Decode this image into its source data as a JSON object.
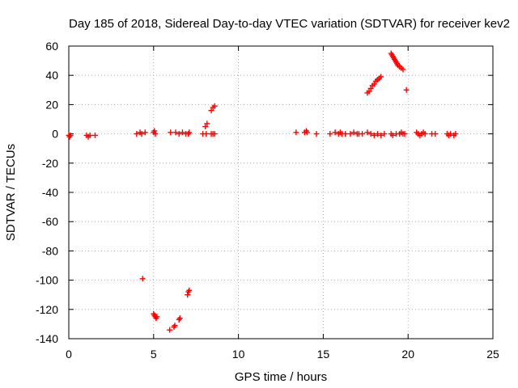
{
  "chart_data": {
    "type": "scatter",
    "title": "Day 185 of 2018, Sidereal Day-to-day VTEC variation (SDTVAR) for receiver kev2",
    "xlabel": "GPS time / hours",
    "ylabel": "SDTVAR / TECUs",
    "xlim": [
      0,
      25
    ],
    "ylim": [
      -140,
      60
    ],
    "xticks": [
      0,
      5,
      10,
      15,
      20,
      25
    ],
    "yticks": [
      -140,
      -120,
      -100,
      -80,
      -60,
      -40,
      -20,
      0,
      20,
      40,
      60
    ],
    "grid": true,
    "marker": "+",
    "series": [
      {
        "name": "SDTVAR",
        "color": "#ff0000",
        "points": [
          [
            0.0,
            -1
          ],
          [
            0.05,
            -2
          ],
          [
            0.1,
            -1
          ],
          [
            1.05,
            -1
          ],
          [
            1.15,
            -2
          ],
          [
            1.25,
            -1
          ],
          [
            1.55,
            -1
          ],
          [
            4.0,
            0
          ],
          [
            4.2,
            1
          ],
          [
            4.3,
            0
          ],
          [
            4.5,
            1
          ],
          [
            4.35,
            -99
          ],
          [
            5.0,
            1
          ],
          [
            5.05,
            2
          ],
          [
            5.1,
            0
          ],
          [
            5.0,
            -123
          ],
          [
            5.05,
            -124
          ],
          [
            5.1,
            -125
          ],
          [
            5.15,
            -126
          ],
          [
            5.2,
            -125
          ],
          [
            5.95,
            -134
          ],
          [
            6.2,
            -132
          ],
          [
            6.25,
            -131
          ],
          [
            6.5,
            -127
          ],
          [
            6.55,
            -126
          ],
          [
            6.0,
            1
          ],
          [
            6.3,
            1
          ],
          [
            6.5,
            0
          ],
          [
            6.7,
            1
          ],
          [
            6.9,
            0
          ],
          [
            7.05,
            0
          ],
          [
            7.1,
            1
          ],
          [
            7.0,
            -110
          ],
          [
            7.05,
            -108
          ],
          [
            7.1,
            -107
          ],
          [
            7.9,
            0
          ],
          [
            8.1,
            0
          ],
          [
            8.05,
            5
          ],
          [
            8.15,
            7
          ],
          [
            8.4,
            0
          ],
          [
            8.5,
            0
          ],
          [
            8.6,
            0
          ],
          [
            8.4,
            16
          ],
          [
            8.5,
            18
          ],
          [
            8.6,
            19
          ],
          [
            13.4,
            1
          ],
          [
            13.9,
            1
          ],
          [
            14.0,
            2
          ],
          [
            14.05,
            1
          ],
          [
            14.6,
            0
          ],
          [
            15.4,
            0
          ],
          [
            15.7,
            1
          ],
          [
            15.9,
            0
          ],
          [
            16.0,
            1
          ],
          [
            16.1,
            0
          ],
          [
            16.3,
            0
          ],
          [
            16.6,
            0
          ],
          [
            16.8,
            1
          ],
          [
            17.0,
            0
          ],
          [
            17.1,
            0
          ],
          [
            17.3,
            0
          ],
          [
            17.6,
            1
          ],
          [
            17.8,
            0
          ],
          [
            18.0,
            -1
          ],
          [
            18.2,
            0
          ],
          [
            18.4,
            -1
          ],
          [
            18.6,
            0
          ],
          [
            17.6,
            28
          ],
          [
            17.7,
            29
          ],
          [
            17.8,
            31
          ],
          [
            17.9,
            33
          ],
          [
            18.0,
            34
          ],
          [
            18.1,
            36
          ],
          [
            18.2,
            37
          ],
          [
            18.3,
            38
          ],
          [
            18.4,
            39
          ],
          [
            19.0,
            55
          ],
          [
            19.05,
            54
          ],
          [
            19.1,
            53
          ],
          [
            19.15,
            52
          ],
          [
            19.2,
            51
          ],
          [
            19.25,
            50
          ],
          [
            19.3,
            49
          ],
          [
            19.35,
            48
          ],
          [
            19.4,
            47
          ],
          [
            19.5,
            46
          ],
          [
            19.6,
            45
          ],
          [
            19.7,
            44
          ],
          [
            19.0,
            0
          ],
          [
            19.1,
            -1
          ],
          [
            19.3,
            0
          ],
          [
            19.5,
            0
          ],
          [
            19.6,
            1
          ],
          [
            19.7,
            0
          ],
          [
            19.8,
            0
          ],
          [
            19.9,
            30
          ],
          [
            20.5,
            1
          ],
          [
            20.6,
            0
          ],
          [
            20.7,
            -1
          ],
          [
            20.8,
            0
          ],
          [
            20.9,
            1
          ],
          [
            21.0,
            0
          ],
          [
            21.4,
            0
          ],
          [
            21.6,
            0
          ],
          [
            22.3,
            0
          ],
          [
            22.4,
            -1
          ],
          [
            22.5,
            0
          ],
          [
            22.7,
            -1
          ],
          [
            22.8,
            0
          ]
        ]
      }
    ]
  }
}
